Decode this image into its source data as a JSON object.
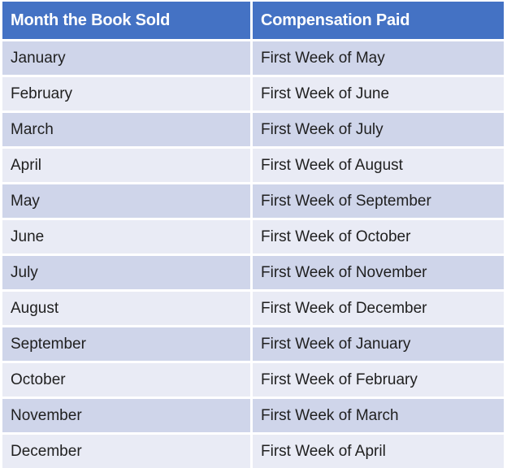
{
  "table": {
    "columns": [
      "Month the Book Sold",
      "Compensation Paid"
    ],
    "rows": [
      {
        "month": "January",
        "compensation": "First Week of May"
      },
      {
        "month": "February",
        "compensation": "First Week of June"
      },
      {
        "month": "March",
        "compensation": "First Week of July"
      },
      {
        "month": "April",
        "compensation": "First Week of August"
      },
      {
        "month": "May",
        "compensation": "First Week of September"
      },
      {
        "month": "June",
        "compensation": "First Week of October"
      },
      {
        "month": "July",
        "compensation": "First Week of November"
      },
      {
        "month": "August",
        "compensation": "First Week of December"
      },
      {
        "month": "September",
        "compensation": "First Week of January"
      },
      {
        "month": "October",
        "compensation": "First Week of February"
      },
      {
        "month": "November",
        "compensation": "First Week of March"
      },
      {
        "month": "December",
        "compensation": "First Week of April"
      }
    ]
  },
  "colors": {
    "header_bg": "#4472C4",
    "band_dark": "#CFD5EA",
    "band_light": "#E9EBF5",
    "header_text": "#FFFFFF",
    "body_text": "#1F1F1F",
    "page_bg": "#FFFFFF",
    "divider": "#FFFFFF"
  }
}
